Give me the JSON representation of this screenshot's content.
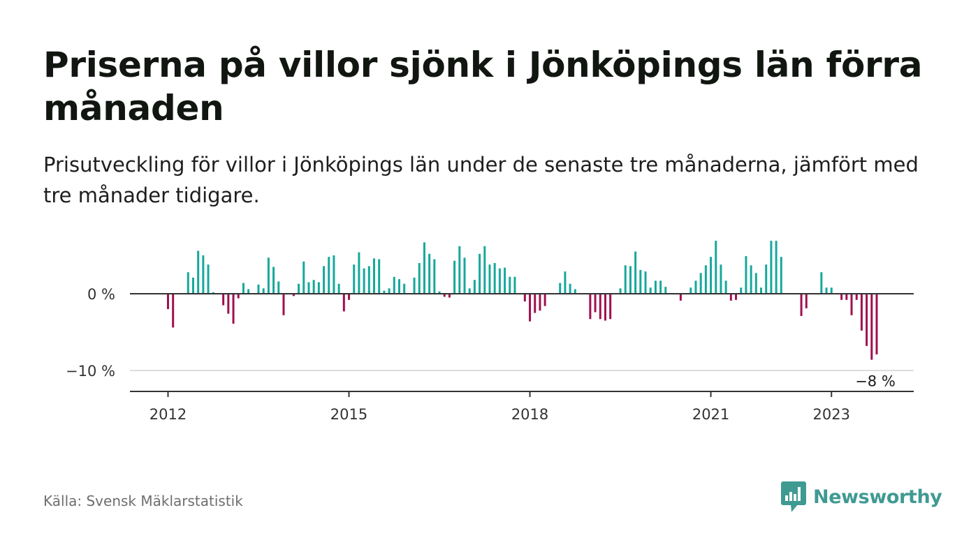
{
  "title": "Priserna på villor sjönk i Jönköpings län förra månaden",
  "subtitle": "Prisutveckling för villor i Jönköpings län under de senaste tre månaderna, jämfört med tre månader tidigare.",
  "source": "Källa: Svensk Mäklarstatistik",
  "logo": {
    "text": "Newsworthy",
    "icon": "newsworthy-chart-bubble-icon"
  },
  "colors": {
    "positive": "#16a89b",
    "negative": "#a0104e",
    "axis": "#333333",
    "grid": "#dddddd"
  },
  "chart_data": {
    "type": "bar",
    "start": "2012-01",
    "x_tick_labels": [
      "2012",
      "2015",
      "2018",
      "2021",
      "2023"
    ],
    "y_tick_labels": [
      "0 %",
      "−10 %"
    ],
    "y_ticks": [
      0,
      -10
    ],
    "ylim": [
      -12.5,
      7.5
    ],
    "last_value_label": "−8 %",
    "values": [
      -2.0,
      -4.4,
      0,
      0,
      2.8,
      2.1,
      5.6,
      5.0,
      3.8,
      0.2,
      0,
      -1.5,
      -2.6,
      -3.9,
      -0.6,
      1.4,
      0.6,
      0,
      1.2,
      0.7,
      4.7,
      3.5,
      1.6,
      -2.8,
      0,
      -0.3,
      1.3,
      4.2,
      1.5,
      1.8,
      1.5,
      3.6,
      4.8,
      5.0,
      1.3,
      -2.3,
      -0.8,
      3.8,
      5.4,
      3.3,
      3.6,
      4.6,
      4.5,
      0.4,
      0.7,
      2.2,
      1.9,
      1.3,
      0,
      2.1,
      4.0,
      6.7,
      5.2,
      4.5,
      0.3,
      -0.4,
      -0.5,
      4.3,
      6.2,
      4.7,
      0.7,
      1.8,
      5.2,
      6.2,
      3.8,
      4.0,
      3.3,
      3.4,
      2.2,
      2.2,
      0,
      -1.0,
      -3.6,
      -2.5,
      -2.2,
      -1.6,
      0,
      0,
      1.4,
      2.9,
      1.3,
      0.6,
      0,
      0,
      -3.3,
      -2.4,
      -3.3,
      -3.5,
      -3.3,
      0,
      0.7,
      3.7,
      3.6,
      5.5,
      3.1,
      2.9,
      0.8,
      1.7,
      1.7,
      0.9,
      0,
      0,
      -0.9,
      0,
      0.8,
      1.7,
      2.7,
      3.7,
      4.8,
      6.9,
      3.8,
      1.7,
      -0.9,
      -0.8,
      0.8,
      4.9,
      3.7,
      2.7,
      0.8,
      3.8,
      6.9,
      6.9,
      4.8,
      0,
      0,
      0,
      -2.9,
      -1.9,
      0,
      0,
      2.8,
      0.8,
      0.8,
      0,
      -0.8,
      -0.8,
      -2.8,
      -0.8,
      -4.8,
      -6.8,
      -8.6,
      -7.9
    ]
  }
}
